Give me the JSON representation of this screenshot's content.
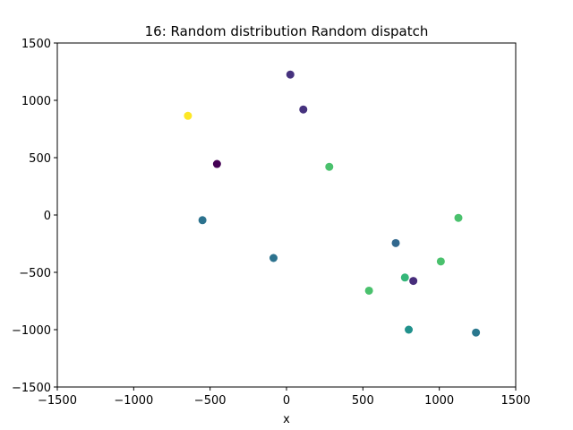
{
  "chart_data": {
    "type": "scatter",
    "title": "16: Random distribution Random dispatch",
    "xlabel": "x",
    "ylabel": "",
    "xlim": [
      -1500,
      1500
    ],
    "ylim": [
      -1500,
      1500
    ],
    "xticks": [
      -1500,
      -1000,
      -500,
      0,
      500,
      1000,
      1500
    ],
    "yticks": [
      -1500,
      -1000,
      -500,
      0,
      500,
      1000,
      1500
    ],
    "xtick_labels": [
      "−1500",
      "−1000",
      "−500",
      "0",
      "500",
      "1000",
      "1500"
    ],
    "ytick_labels": [
      "−1500",
      "−1000",
      "−500",
      "0",
      "500",
      "1000",
      "1500"
    ],
    "grid": false,
    "points": [
      {
        "x": 25,
        "y": 1225,
        "color": "#46327e"
      },
      {
        "x": 110,
        "y": 920,
        "color": "#46327e"
      },
      {
        "x": -645,
        "y": 865,
        "color": "#fde725"
      },
      {
        "x": -455,
        "y": 445,
        "color": "#440154"
      },
      {
        "x": 280,
        "y": 420,
        "color": "#4ac16d"
      },
      {
        "x": -550,
        "y": -45,
        "color": "#2c728e"
      },
      {
        "x": 1125,
        "y": -25,
        "color": "#4ac16d"
      },
      {
        "x": 715,
        "y": -245,
        "color": "#31688e"
      },
      {
        "x": -85,
        "y": -375,
        "color": "#2c728e"
      },
      {
        "x": 1010,
        "y": -405,
        "color": "#4ac16d"
      },
      {
        "x": 775,
        "y": -545,
        "color": "#35b779"
      },
      {
        "x": 830,
        "y": -575,
        "color": "#472d7b"
      },
      {
        "x": 540,
        "y": -660,
        "color": "#4ac16d"
      },
      {
        "x": 800,
        "y": -1000,
        "color": "#21918c"
      },
      {
        "x": 1240,
        "y": -1025,
        "color": "#2a788e"
      }
    ]
  }
}
